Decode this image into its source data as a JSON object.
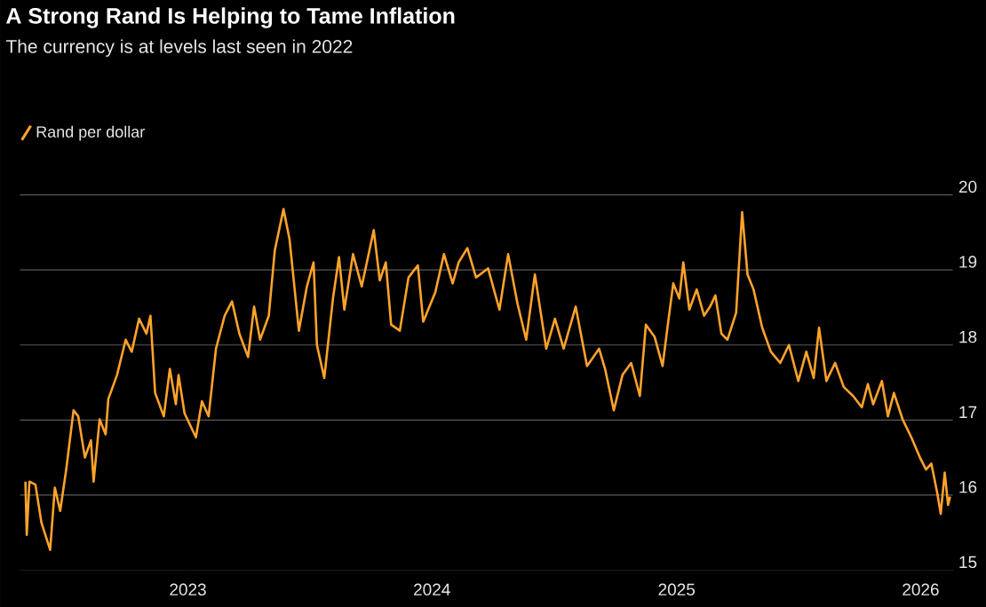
{
  "chart_data": {
    "type": "line",
    "title": "A Strong Rand Is Helping to Tame Inflation",
    "subtitle": "The currency is at levels last seen in 2022",
    "x": [
      "2022-05-03",
      "2022-05-05",
      "2022-05-09",
      "2022-05-18",
      "2022-05-27",
      "2022-06-09",
      "2022-06-16",
      "2022-06-24",
      "2022-07-03",
      "2022-07-14",
      "2022-07-21",
      "2022-07-31",
      "2022-08-09",
      "2022-08-13",
      "2022-08-22",
      "2022-08-31",
      "2022-09-04",
      "2022-09-17",
      "2022-09-30",
      "2022-10-09",
      "2022-10-20",
      "2022-10-31",
      "2022-11-06",
      "2022-11-13",
      "2022-11-26",
      "2022-12-05",
      "2022-12-14",
      "2022-12-18",
      "2022-12-27",
      "2023-01-13",
      "2023-01-22",
      "2023-02-01",
      "2023-02-12",
      "2023-02-25",
      "2023-03-08",
      "2023-03-19",
      "2023-04-01",
      "2023-04-10",
      "2023-04-19",
      "2023-05-02",
      "2023-05-11",
      "2023-05-24",
      "2023-06-02",
      "2023-06-16",
      "2023-06-28",
      "2023-07-08",
      "2023-07-13",
      "2023-07-24",
      "2023-08-06",
      "2023-08-15",
      "2023-08-23",
      "2023-09-05",
      "2023-09-18",
      "2023-10-06",
      "2023-10-15",
      "2023-10-24",
      "2023-11-01",
      "2023-11-14",
      "2023-11-27",
      "2023-12-11",
      "2023-12-19",
      "2024-01-06",
      "2024-01-19",
      "2024-02-01",
      "2024-02-10",
      "2024-02-23",
      "2024-03-07",
      "2024-03-25",
      "2024-04-11",
      "2024-04-24",
      "2024-05-08",
      "2024-05-21",
      "2024-06-03",
      "2024-06-20",
      "2024-07-03",
      "2024-07-16",
      "2024-08-03",
      "2024-08-20",
      "2024-09-07",
      "2024-09-16",
      "2024-09-29",
      "2024-10-12",
      "2024-10-25",
      "2024-11-07",
      "2024-11-16",
      "2024-11-29",
      "2024-12-11",
      "2024-12-20",
      "2024-12-27",
      "2025-01-05",
      "2025-01-11",
      "2025-01-20",
      "2025-01-31",
      "2025-02-11",
      "2025-02-20",
      "2025-02-28",
      "2025-03-09",
      "2025-03-18",
      "2025-03-31",
      "2025-04-09",
      "2025-04-17",
      "2025-04-26",
      "2025-05-09",
      "2025-05-22",
      "2025-06-05",
      "2025-06-18",
      "2025-07-02",
      "2025-07-14",
      "2025-07-25",
      "2025-08-02",
      "2025-08-13",
      "2025-08-26",
      "2025-09-08",
      "2025-09-22",
      "2025-10-05",
      "2025-10-14",
      "2025-10-22",
      "2025-11-04",
      "2025-11-13",
      "2025-11-22",
      "2025-12-05",
      "2025-12-18",
      "2025-12-31",
      "2026-01-09",
      "2026-01-17",
      "2026-01-26",
      "2026-01-31",
      "2026-02-06",
      "2026-02-11",
      "2026-02-14"
    ],
    "series": [
      {
        "name": "Rand per dollar",
        "color": "#ffa32a",
        "values": [
          16.18,
          15.47,
          16.18,
          16.14,
          15.63,
          15.27,
          16.1,
          15.79,
          16.34,
          17.13,
          17.05,
          16.5,
          16.73,
          16.18,
          17.01,
          16.81,
          17.28,
          17.6,
          18.07,
          17.91,
          18.35,
          18.15,
          18.39,
          17.36,
          17.05,
          17.68,
          17.21,
          17.6,
          17.09,
          16.77,
          17.25,
          17.05,
          17.95,
          18.39,
          18.58,
          18.15,
          17.84,
          18.51,
          18.07,
          18.39,
          19.26,
          19.81,
          19.41,
          18.19,
          18.78,
          19.1,
          18.0,
          17.56,
          18.62,
          19.17,
          18.47,
          19.21,
          18.78,
          19.53,
          18.86,
          19.1,
          18.27,
          18.19,
          18.9,
          19.06,
          18.31,
          18.7,
          19.21,
          18.82,
          19.1,
          19.29,
          18.9,
          19.02,
          18.47,
          19.21,
          18.55,
          18.07,
          18.94,
          17.95,
          18.35,
          17.95,
          18.51,
          17.72,
          17.95,
          17.68,
          17.13,
          17.6,
          17.76,
          17.32,
          18.27,
          18.11,
          17.72,
          18.35,
          18.82,
          18.62,
          19.1,
          18.47,
          18.74,
          18.39,
          18.51,
          18.66,
          18.15,
          18.07,
          18.43,
          19.77,
          18.94,
          18.74,
          18.23,
          17.91,
          17.76,
          18.0,
          17.52,
          17.91,
          17.56,
          18.23,
          17.52,
          17.76,
          17.44,
          17.32,
          17.17,
          17.48,
          17.21,
          17.52,
          17.05,
          17.36,
          17.01,
          16.77,
          16.5,
          16.34,
          16.42,
          16.02,
          15.75,
          16.3,
          15.87,
          15.98
        ]
      }
    ],
    "xlim": [
      "2022-04-25",
      "2026-02-18"
    ],
    "xticks": [
      {
        "value": "2023-01-01",
        "label": "2023"
      },
      {
        "value": "2024-01-01",
        "label": "2024"
      },
      {
        "value": "2025-01-01",
        "label": "2025"
      },
      {
        "value": "2026-01-01",
        "label": "2026"
      }
    ],
    "ylim": [
      15,
      20
    ],
    "yticks": [
      15,
      16,
      17,
      18,
      19,
      20
    ],
    "grid": "y",
    "legend": "top left"
  }
}
